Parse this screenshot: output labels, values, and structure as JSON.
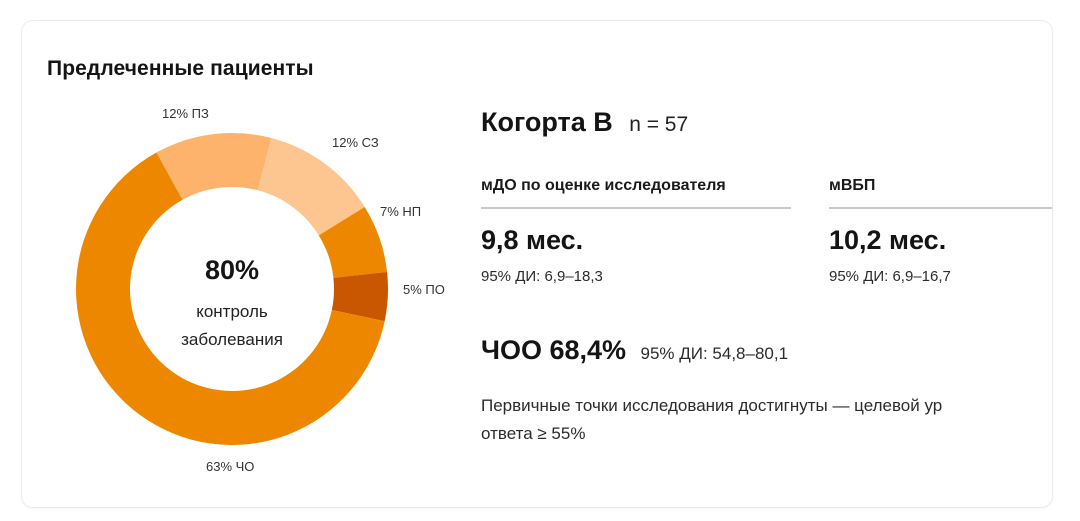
{
  "card": {
    "title": "Предлеченные пациенты"
  },
  "donut": {
    "center_value": "80%",
    "center_caption_line1": "контроль",
    "center_caption_line2": "заболевания",
    "labels": {
      "pz": "12% ПЗ",
      "sz": "12% СЗ",
      "np": "7% НП",
      "po": "5% ПО",
      "cho": "63% ЧО"
    }
  },
  "cohort": {
    "name": "Когорта B",
    "n": "n = 57"
  },
  "metrics": [
    {
      "label": "мДО по оценке исследователя",
      "value": "9,8 мес.",
      "ci": "95% ДИ: 6,9–18,3"
    },
    {
      "label": "мВБП",
      "value": "10,2 мес.",
      "ci": "95% ДИ: 6,9–16,7"
    }
  ],
  "orr": {
    "main": "ЧОО 68,4%",
    "ci": "95% ДИ: 54,8–80,1"
  },
  "note": {
    "line1": "Первичные точки исследования достигнуты — целевой ур",
    "line2": "ответа ≥ 55%"
  },
  "colors": {
    "cho": "#ee8700",
    "pz": "#fdb36b",
    "sz": "#fdc690",
    "np": "#ee8700",
    "po": "#c95600"
  },
  "chart_data": {
    "type": "pie",
    "subtype": "donut",
    "title": "Предлеченные пациенты",
    "center_text": "80% контроль заболевания",
    "categories": [
      "ПЗ",
      "СЗ",
      "НП",
      "ПО",
      "ЧО"
    ],
    "values": [
      12,
      12,
      7,
      5,
      63
    ],
    "labels": [
      "12% ПЗ",
      "12% СЗ",
      "7% НП",
      "5% ПО",
      "63% ЧО"
    ],
    "colors": [
      "#fdb36b",
      "#fdc690",
      "#ee8700",
      "#c95600",
      "#ee8700"
    ],
    "start_angle_deg": -29,
    "direction": "clockwise",
    "legend": "none (inline labels)"
  }
}
